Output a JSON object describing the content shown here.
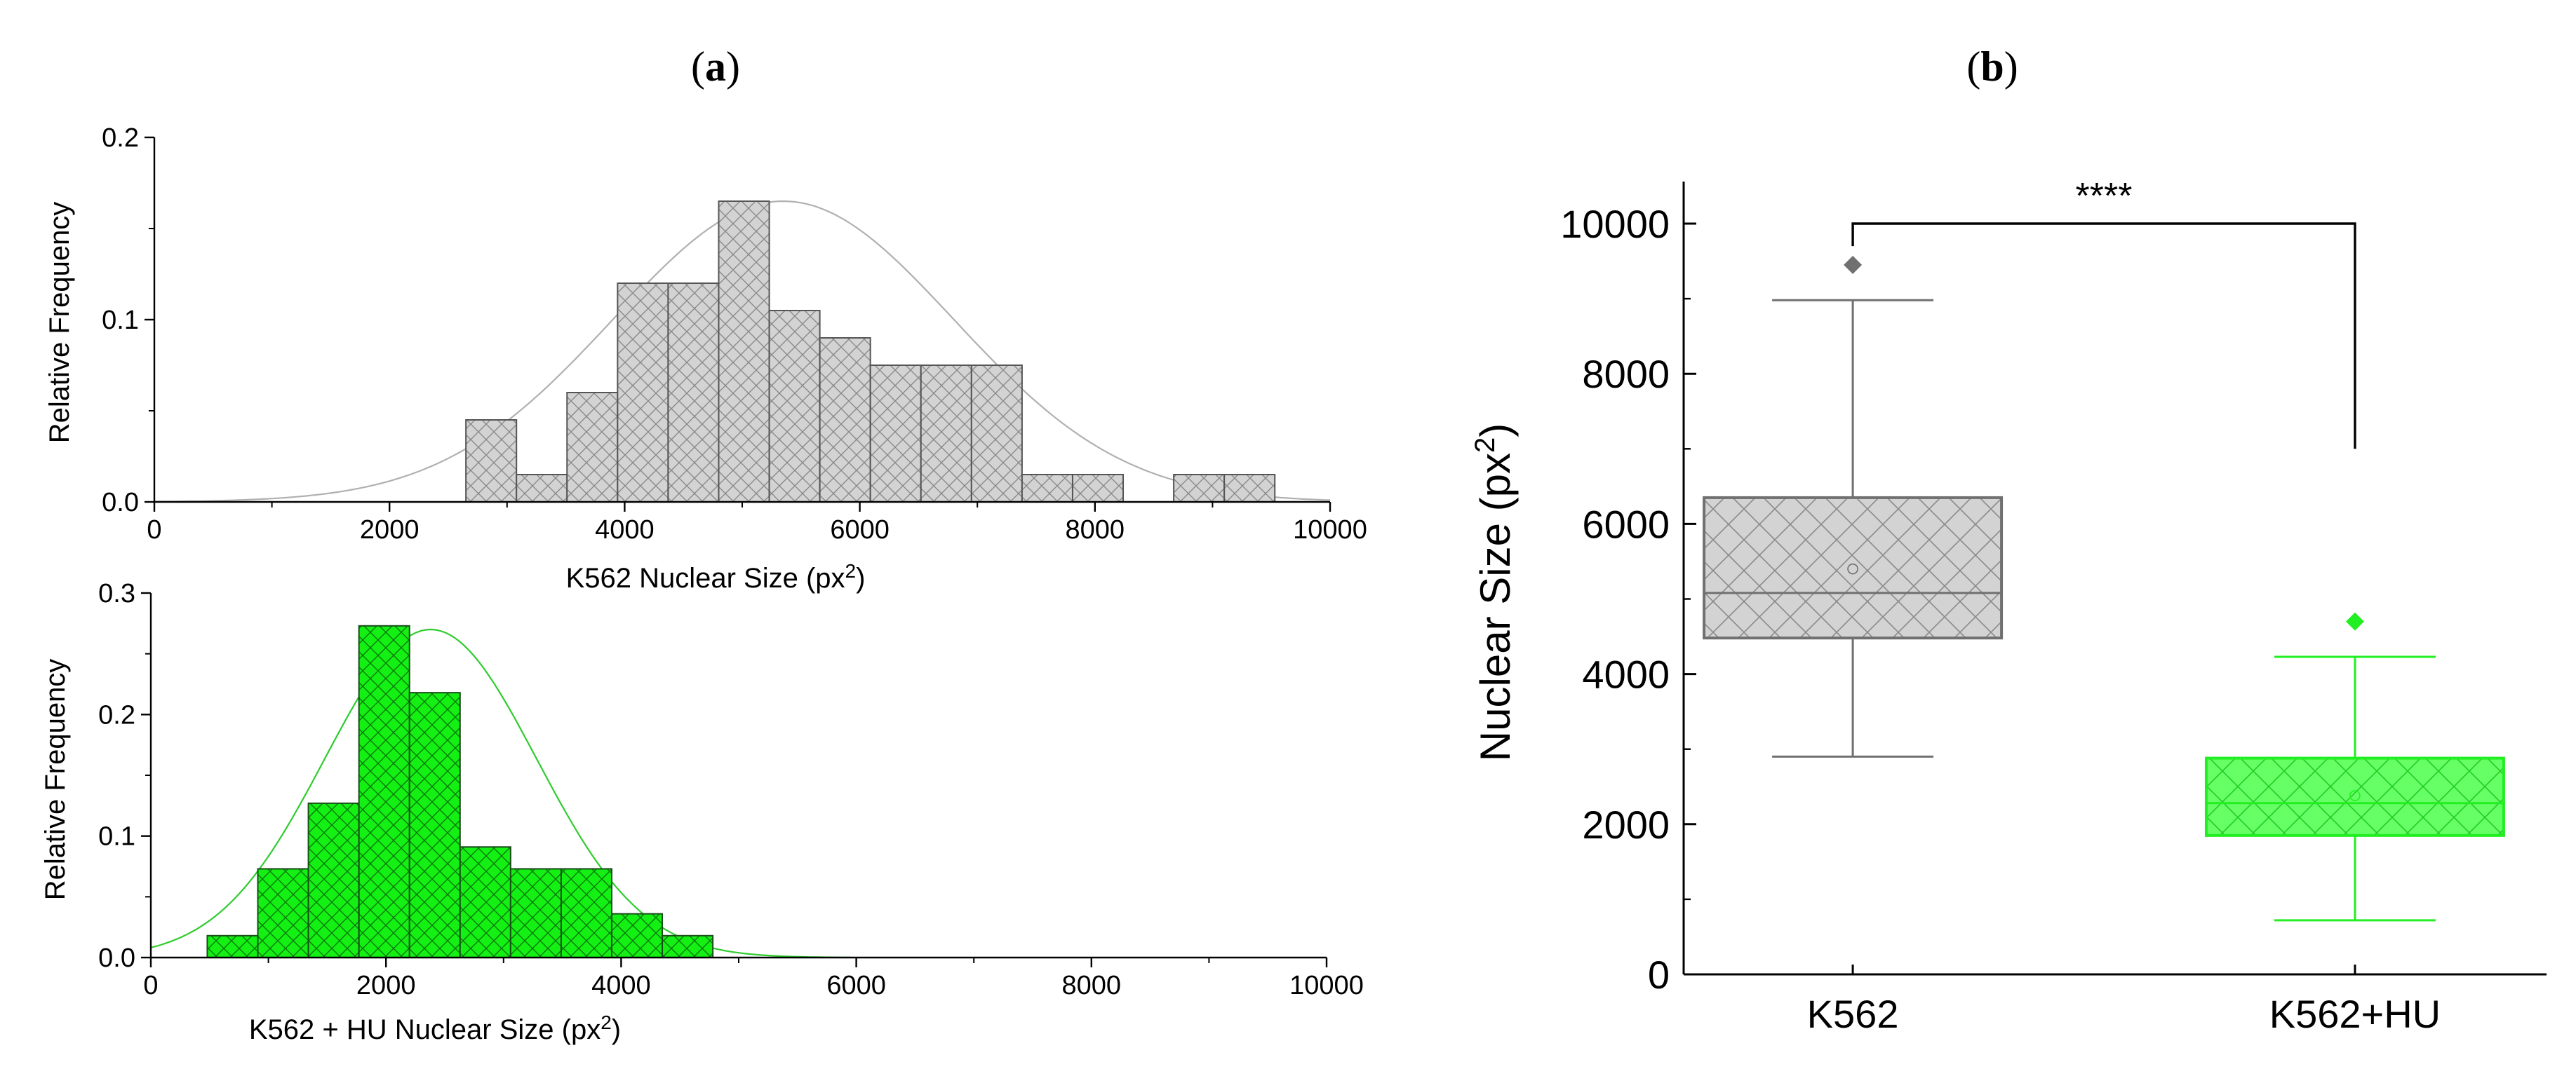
{
  "panels": {
    "a": "a",
    "b": "b"
  },
  "chart_data": [
    {
      "type": "bar",
      "subtype": "histogram",
      "panel": "a",
      "xlabel": "K562 Nuclear Size (px",
      "xlabel_sup": "2",
      "xlabel_close": ")",
      "ylabel": "Relative Frequency",
      "xlim": [
        0,
        10000
      ],
      "ylim": [
        0,
        0.2
      ],
      "xticks": [
        0,
        2000,
        4000,
        6000,
        8000,
        10000
      ],
      "xtick_labels": [
        "0",
        "2000",
        "4000",
        "6000",
        "8000",
        "10000"
      ],
      "yticks": [
        0,
        0.1,
        0.2
      ],
      "ytick_labels": [
        "0.0",
        "0.1",
        "0.2"
      ],
      "bin_width": 430,
      "bins": [
        {
          "start": 2650,
          "value": 0.045
        },
        {
          "start": 3080,
          "value": 0.015
        },
        {
          "start": 3510,
          "value": 0.06
        },
        {
          "start": 3940,
          "value": 0.12
        },
        {
          "start": 4370,
          "value": 0.12
        },
        {
          "start": 4800,
          "value": 0.165
        },
        {
          "start": 5230,
          "value": 0.105
        },
        {
          "start": 5660,
          "value": 0.09
        },
        {
          "start": 6090,
          "value": 0.075
        },
        {
          "start": 6520,
          "value": 0.075
        },
        {
          "start": 6950,
          "value": 0.075
        },
        {
          "start": 7380,
          "value": 0.015
        },
        {
          "start": 7810,
          "value": 0.015
        },
        {
          "start": 8670,
          "value": 0.015
        },
        {
          "start": 9100,
          "value": 0.015
        }
      ],
      "fit": {
        "mean": 5350,
        "sd": 1450,
        "peak": 0.165
      },
      "colors": {
        "fill": "#d3d3d3",
        "stroke": "#555555",
        "hatch": "#8a8a8a",
        "fit": "#b0b0b0"
      }
    },
    {
      "type": "bar",
      "subtype": "histogram",
      "panel": "a",
      "xlabel": "K562 + HU Nuclear Size (px",
      "xlabel_sup": "2",
      "xlabel_close": ")",
      "ylabel": "Relative Frequency",
      "xlim": [
        0,
        10000
      ],
      "ylim": [
        0,
        0.3
      ],
      "xticks": [
        0,
        2000,
        4000,
        6000,
        8000,
        10000
      ],
      "xtick_labels": [
        "0",
        "2000",
        "4000",
        "6000",
        "8000",
        "10000"
      ],
      "yticks": [
        0,
        0.1,
        0.2,
        0.3
      ],
      "ytick_labels": [
        "0.0",
        "0.1",
        "0.2",
        "0.3"
      ],
      "bin_width": 430,
      "bins": [
        {
          "start": 480,
          "value": 0.018
        },
        {
          "start": 910,
          "value": 0.073
        },
        {
          "start": 1340,
          "value": 0.127
        },
        {
          "start": 1770,
          "value": 0.273
        },
        {
          "start": 2200,
          "value": 0.218
        },
        {
          "start": 2630,
          "value": 0.091
        },
        {
          "start": 3060,
          "value": 0.073
        },
        {
          "start": 3490,
          "value": 0.073
        },
        {
          "start": 3920,
          "value": 0.036
        },
        {
          "start": 4350,
          "value": 0.018
        }
      ],
      "fit": {
        "mean": 2380,
        "sd": 900,
        "peak": 0.27
      },
      "colors": {
        "fill": "#14f014",
        "stroke": "#1a4d1a",
        "hatch": "#0a7a0a",
        "fit": "#2ecc2e"
      }
    },
    {
      "type": "box",
      "panel": "b",
      "ylabel": "Nuclear Size (px",
      "ylabel_sup": "2",
      "ylabel_close": ")",
      "ylim": [
        0,
        10000
      ],
      "yticks": [
        0,
        2000,
        4000,
        6000,
        8000,
        10000
      ],
      "ytick_labels": [
        "0",
        "2000",
        "4000",
        "6000",
        "8000",
        "10000"
      ],
      "categories": [
        "K562",
        "K562+HU"
      ],
      "boxes": [
        {
          "name": "K562",
          "whisker_low": 2900,
          "q1": 4480,
          "median": 5080,
          "mean": 5400,
          "q3": 6350,
          "whisker_high": 8980,
          "outliers": [
            9450
          ],
          "colors": {
            "fill": "#d3d3d3",
            "stroke": "#707070",
            "hatch": "#8a8a8a",
            "outlier": "#707070"
          }
        },
        {
          "name": "K562+HU",
          "whisker_low": 720,
          "q1": 1850,
          "median": 2280,
          "mean": 2380,
          "q3": 2880,
          "whisker_high": 4230,
          "outliers": [
            4700
          ],
          "colors": {
            "fill": "#66ff66",
            "stroke": "#22ee22",
            "hatch": "#22cc22",
            "outlier": "#22ee22"
          }
        }
      ],
      "significance": {
        "label": "****",
        "top": 10000,
        "left_drop": 9700,
        "right_drop": 7000
      }
    }
  ]
}
